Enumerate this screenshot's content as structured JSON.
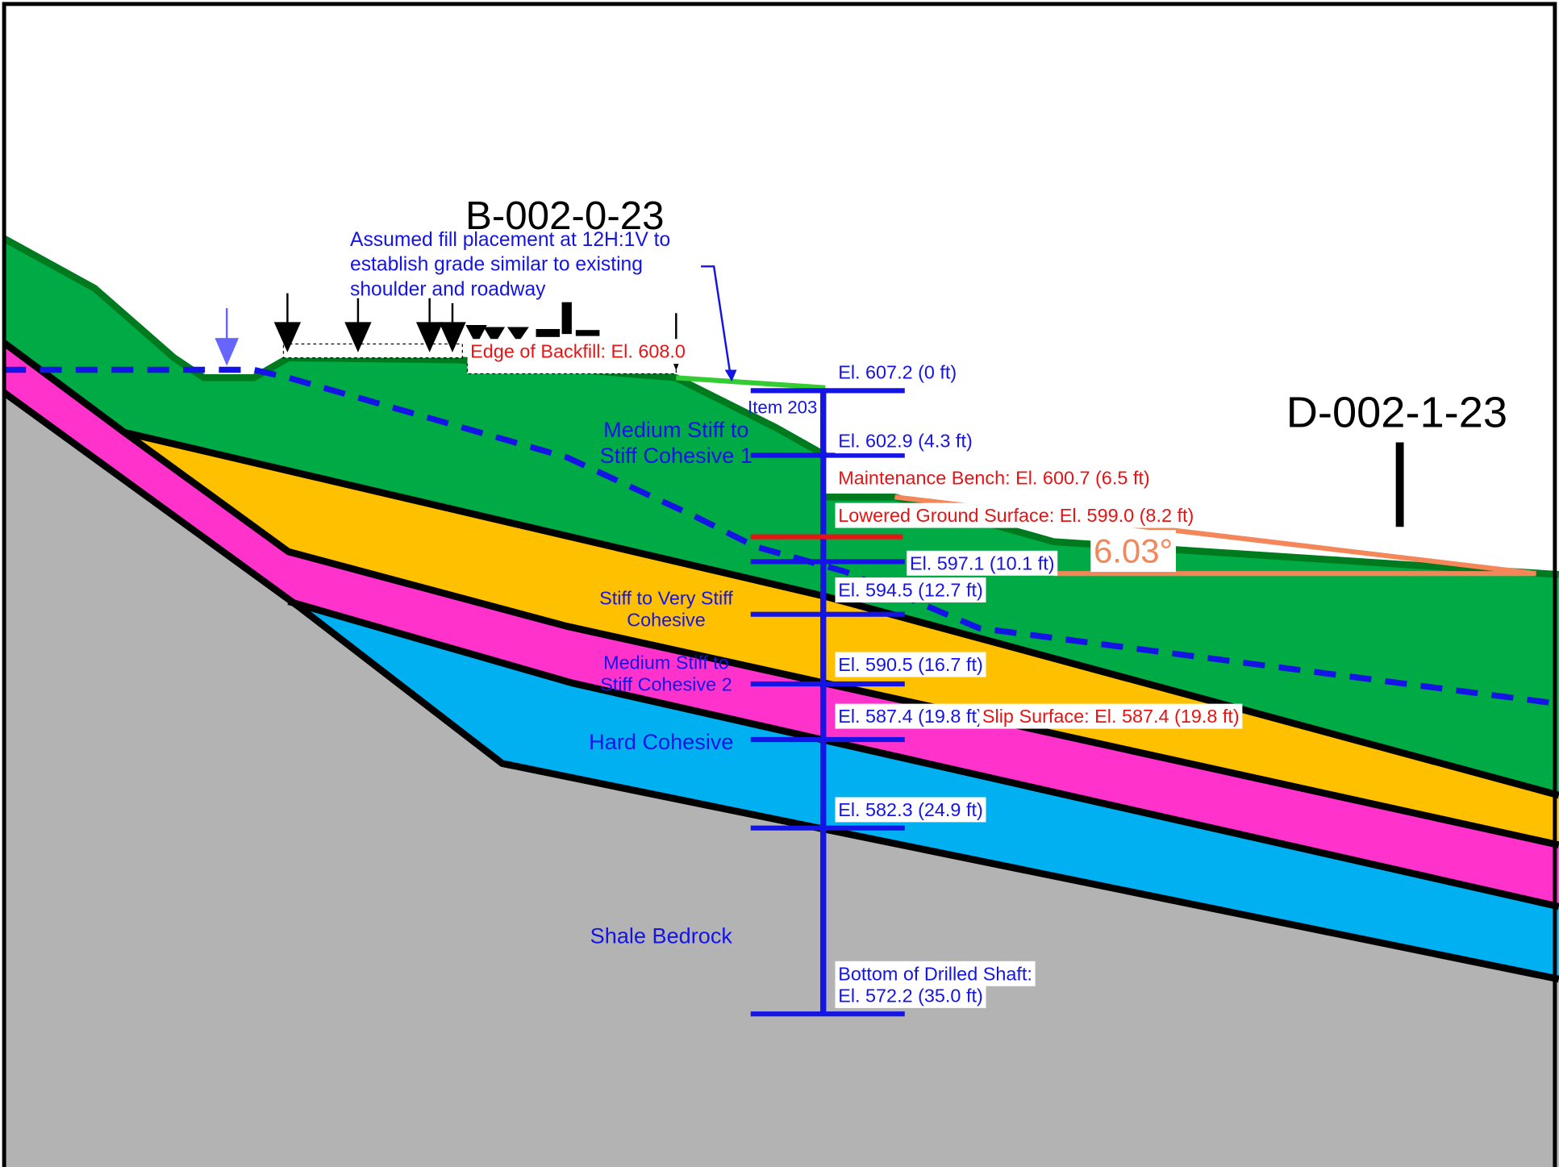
{
  "borings": [
    "B-002-0-23",
    "D-002-1-23"
  ],
  "annotation": [
    "Assumed fill placement at 12H:1V to",
    "establish grade similar to existing",
    "shoulder and roadway"
  ],
  "edge_of_backfill": "Edge of Backfill: El. 608.0",
  "item": "Item 203",
  "angle": "6.03°",
  "soil_layers": [
    {
      "lines": [
        "Medium Stiff to",
        "Stiff Cohesive 1"
      ]
    },
    {
      "lines": [
        "Stiff to Very Stiff",
        "Cohesive"
      ]
    },
    {
      "lines": [
        "Medium Stiff to",
        "Stiff Cohesive 2"
      ]
    },
    {
      "lines": [
        "Hard Cohesive"
      ]
    },
    {
      "lines": [
        "Shale Bedrock"
      ]
    }
  ],
  "elevation_labels": [
    "El. 607.2 (0 ft)",
    "El. 602.9 (4.3 ft)",
    "Maintenance Bench: El. 600.7 (6.5 ft)",
    "Lowered Ground Surface: El. 599.0 (8.2 ft)",
    "El. 597.1 (10.1 ft)",
    "El. 594.5 (12.7 ft)",
    "El. 590.5 (16.7 ft)",
    "El. 587.4 (19.8 ft)",
    "Slip Surface: El. 587.4 (19.8 ft)",
    "El. 582.3 (24.9 ft)",
    "Bottom of Drilled Shaft:",
    "El. 572.2 (35.0 ft)"
  ]
}
